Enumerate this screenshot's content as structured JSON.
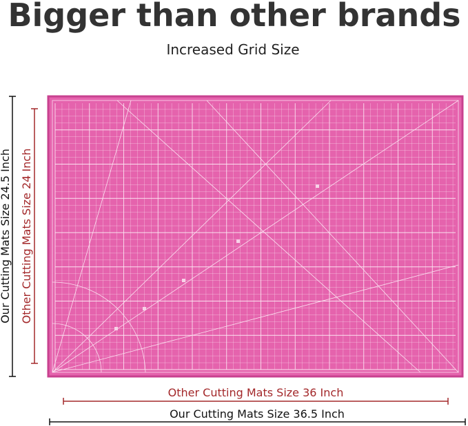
{
  "header": {
    "title": "Bigger than other brands",
    "subtitle": "Increased Grid Size"
  },
  "dimensions": {
    "ours_height": "Our Cutting Mats Size 24.5 Inch",
    "other_height": "Other Cutting Mats Size 24 Inch",
    "other_width": "Other Cutting Mats Size 36 Inch",
    "ours_width": "Our Cutting Mats Size 36.5 Inch"
  }
}
